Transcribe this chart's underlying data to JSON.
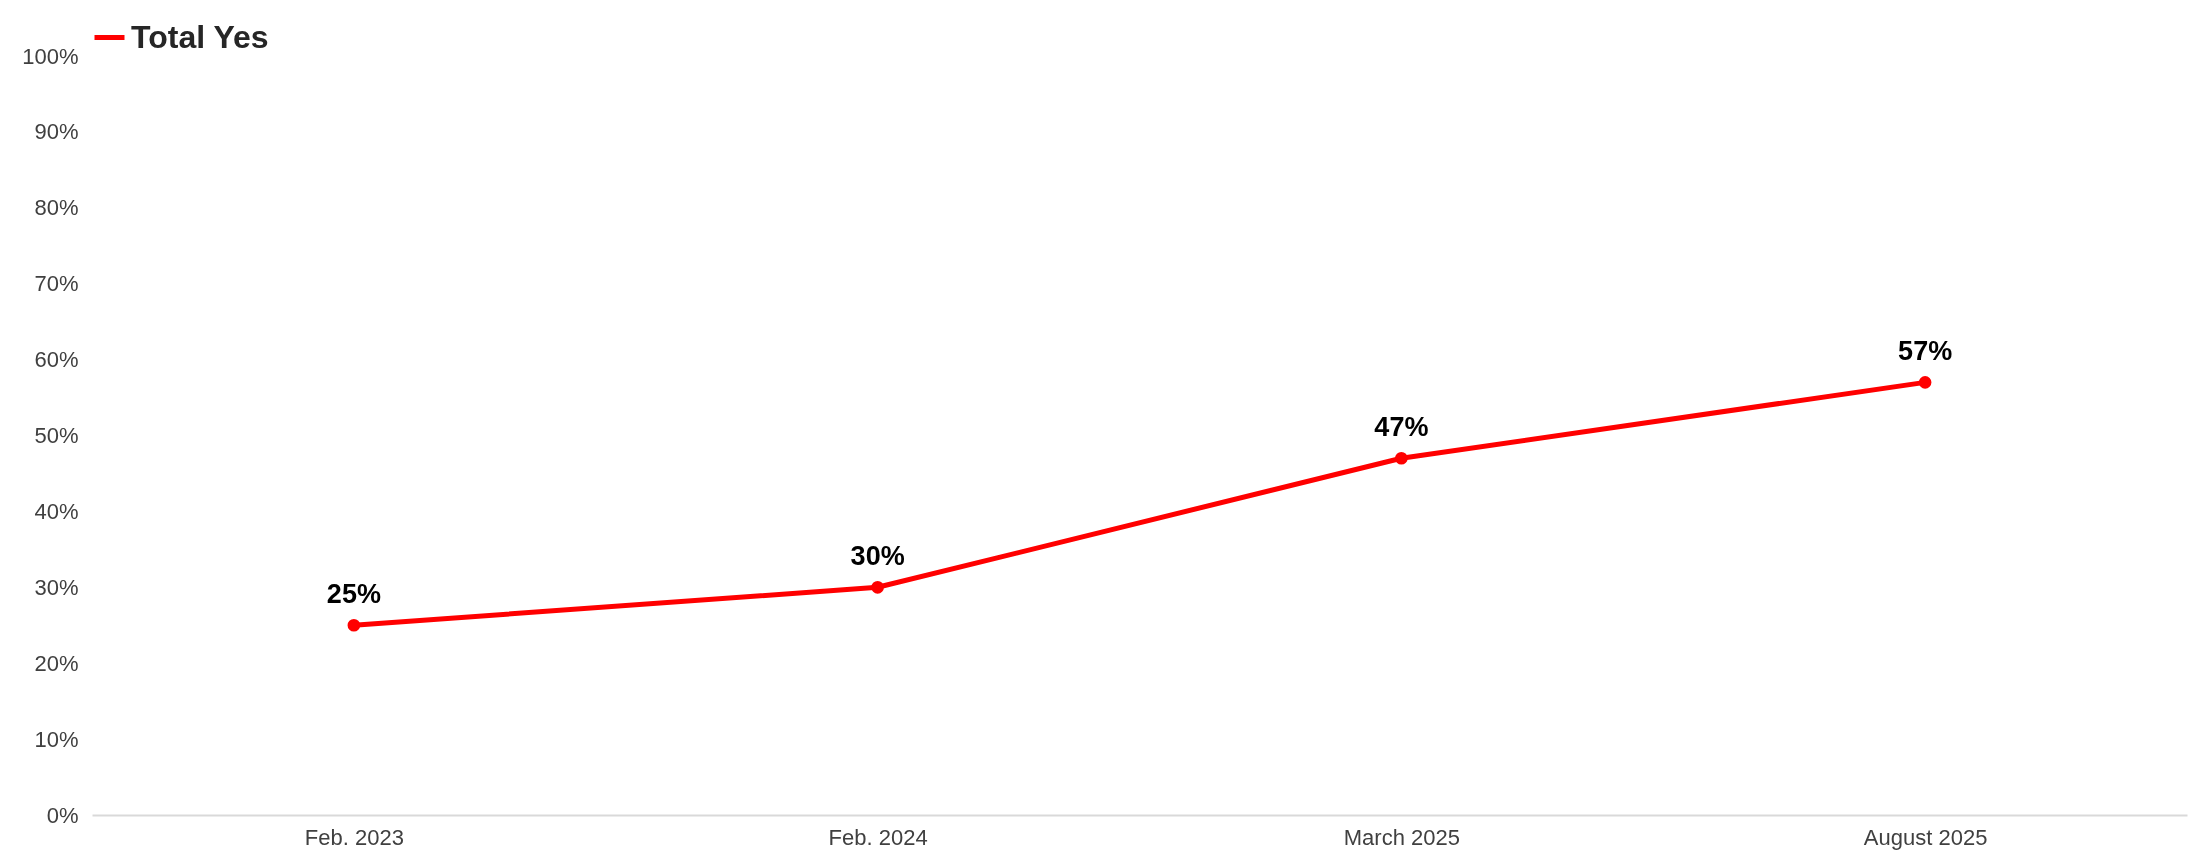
{
  "chart_data": {
    "type": "line",
    "categories": [
      "Feb. 2023",
      "Feb. 2024",
      "March 2025",
      "August 2025"
    ],
    "series": [
      {
        "name": "Total Yes",
        "color": "#ff0000",
        "values": [
          25,
          30,
          47,
          57
        ],
        "value_labels": [
          "25%",
          "30%",
          "47%",
          "57%"
        ]
      }
    ],
    "ylim": [
      0,
      100
    ],
    "yticks": [
      {
        "value": 0,
        "label": "0%"
      },
      {
        "value": 10,
        "label": "10%"
      },
      {
        "value": 20,
        "label": "20%"
      },
      {
        "value": 30,
        "label": "30%"
      },
      {
        "value": 40,
        "label": "40%"
      },
      {
        "value": 50,
        "label": "50%"
      },
      {
        "value": 60,
        "label": "60%"
      },
      {
        "value": 70,
        "label": "70%"
      },
      {
        "value": 80,
        "label": "80%"
      },
      {
        "value": 90,
        "label": "90%"
      },
      {
        "value": 100,
        "label": "100%"
      }
    ],
    "legend": "top",
    "marker": "circle"
  }
}
